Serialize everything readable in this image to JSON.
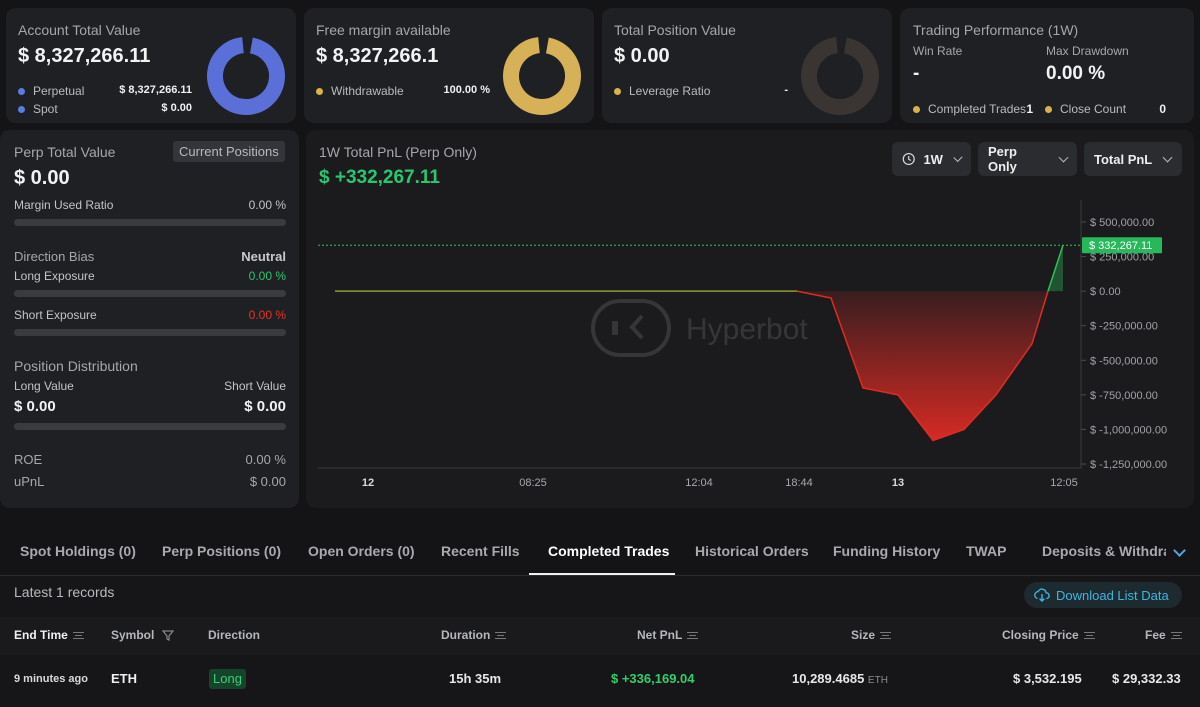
{
  "account_total": {
    "title": "Account Total Value",
    "value": "$ 8,327,266.11",
    "items": [
      {
        "label": "Perpetual",
        "value": "$ 8,327,266.11",
        "color": "#5b7be0"
      },
      {
        "label": "Spot",
        "value": "$ 0.00",
        "color": "#5b7be0"
      }
    ],
    "ring_color": "#5b6fd8"
  },
  "free_margin": {
    "title": "Free margin available",
    "value": "$ 8,327,266.1",
    "items": [
      {
        "label": "Withdrawable",
        "value": "100.00 %",
        "color": "#d9b24a"
      }
    ],
    "ring_color": "#d7b157"
  },
  "total_position": {
    "title": "Total Position Value",
    "value": "$ 0.00",
    "items": [
      {
        "label": "Leverage Ratio",
        "value": "-",
        "color": "#d9b24a"
      }
    ],
    "ring_color": "#3a3533"
  },
  "trading_performance": {
    "title": "Trading Performance (1W)",
    "win_rate_label": "Win Rate",
    "win_rate_value": "-",
    "max_drawdown_label": "Max Drawdown",
    "max_drawdown_value": "0.00 %",
    "completed_label": "Completed Trades",
    "completed_value": "1",
    "close_label": "Close Count",
    "close_value": "0"
  },
  "perp_panel": {
    "title": "Perp Total Value",
    "current_positions_button": "Current Positions",
    "value": "$ 0.00",
    "margin_used_label": "Margin Used Ratio",
    "margin_used_value": "0.00 %",
    "direction_bias_label": "Direction Bias",
    "direction_bias_value": "Neutral",
    "long_exposure_label": "Long Exposure",
    "long_exposure_value": "0.00 %",
    "short_exposure_label": "Short Exposure",
    "short_exposure_value": "0.00 %",
    "position_distribution_label": "Position Distribution",
    "long_value_label": "Long Value",
    "long_value": "$ 0.00",
    "short_value_label": "Short Value",
    "short_value": "$ 0.00",
    "roe_label": "ROE",
    "roe_value": "0.00 %",
    "upnl_label": "uPnL",
    "upnl_value": "$ 0.00"
  },
  "pnl_chart_panel": {
    "title": "1W Total PnL (Perp Only)",
    "value": "$ +332,267.11",
    "controls": {
      "range": "1W",
      "scope": "Perp Only",
      "metric": "Total PnL"
    },
    "watermark": "Hyperbot",
    "current_tag": "$ 332,267.11"
  },
  "chart_data": {
    "type": "line",
    "title": "1W Total PnL (Perp Only)",
    "xlabel": "",
    "ylabel": "",
    "x_tick_labels": [
      "12",
      "08:25",
      "12:04",
      "18:44",
      "13",
      "12:05"
    ],
    "y_tick_labels": [
      "$ 500,000.00",
      "$ 250,000.00",
      "$ 0.00",
      "$ -250,000.00",
      "$ -500,000.00",
      "$ -750,000.00",
      "$ -1,000,000.00",
      "$ -1,250,000.00"
    ],
    "ylim": [
      -1250000,
      500000
    ],
    "series": [
      {
        "values": [
          0,
          0,
          0,
          0,
          0,
          0,
          0,
          0,
          0,
          -50000,
          -700000,
          -750000,
          -1080000,
          -1000000,
          -750000,
          -380000,
          0,
          332267.11
        ]
      }
    ],
    "colors": {
      "positive": "#2fbf5a",
      "negative": "#e02b24",
      "flat": "#8f9a38",
      "ref_line": "#2fbf5a"
    }
  },
  "tabs": {
    "items": [
      "Spot Holdings (0)",
      "Perp Positions (0)",
      "Open Orders (0)",
      "Recent Fills",
      "Completed Trades",
      "Historical Orders",
      "Funding History",
      "TWAP",
      "Deposits & Withdrav"
    ],
    "active": "Completed Trades"
  },
  "records": {
    "count_text": "Latest 1 records",
    "download_label": "Download List Data"
  },
  "table": {
    "headers": {
      "end_time": "End Time",
      "symbol": "Symbol",
      "direction": "Direction",
      "duration": "Duration",
      "net_pnl": "Net PnL",
      "size": "Size",
      "closing_price": "Closing Price",
      "fee": "Fee"
    },
    "rows": [
      {
        "end_time": "9 minutes ago",
        "symbol": "ETH",
        "direction": "Long",
        "duration": "15h 35m",
        "net_pnl": "$ +336,169.04",
        "size": "10,289.4685",
        "size_unit": "ETH",
        "closing_price": "$ 3,532.195",
        "fee": "$ 29,332.33"
      }
    ]
  }
}
